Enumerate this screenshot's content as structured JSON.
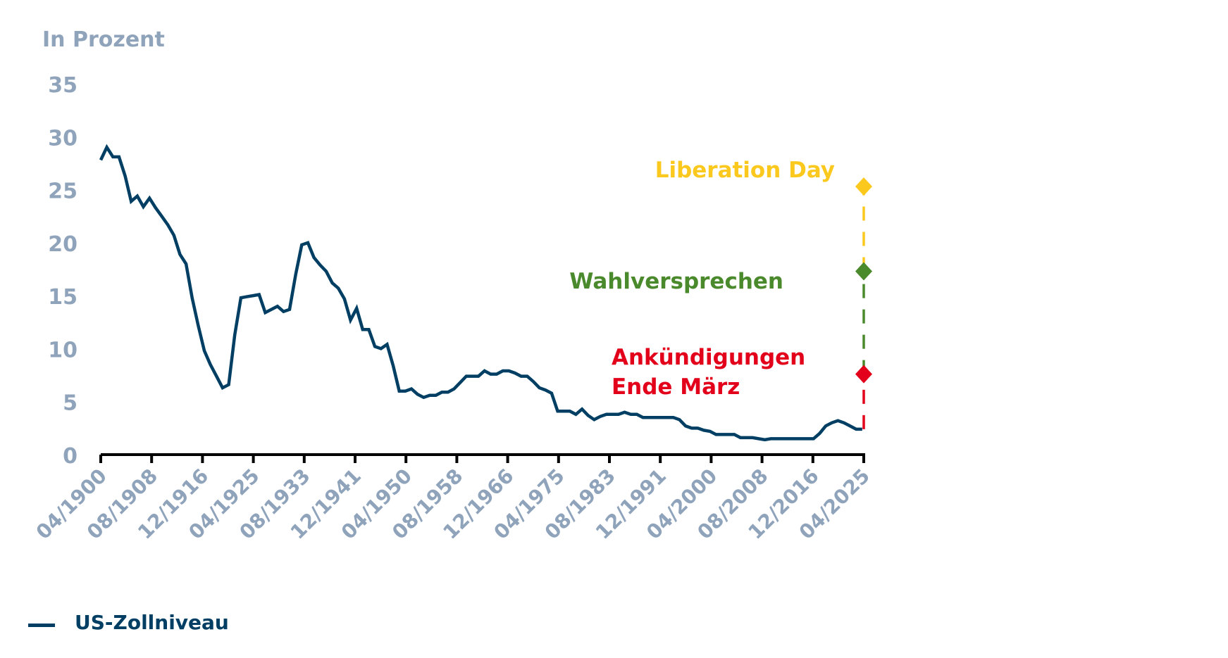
{
  "chart_data": {
    "type": "line",
    "title": "",
    "ylabel": "In Prozent",
    "xlabel": "",
    "ylim": [
      0,
      35
    ],
    "yticks": [
      0,
      5,
      10,
      15,
      20,
      25,
      30,
      35
    ],
    "xticks": [
      "04/1900",
      "08/1908",
      "12/1916",
      "04/1925",
      "08/1933",
      "12/1941",
      "04/1950",
      "08/1958",
      "12/1966",
      "04/1975",
      "08/1983",
      "12/1991",
      "04/2000",
      "08/2008",
      "12/2016",
      "04/2025"
    ],
    "grid": false,
    "legend_position": "bottom-left",
    "series": [
      {
        "name": "US-Zollniveau",
        "color": "#003f63",
        "x": [
          1900,
          1901,
          1902,
          1903,
          1904,
          1905,
          1906,
          1907,
          1908,
          1909,
          1910,
          1911,
          1912,
          1913,
          1914,
          1915,
          1916,
          1917,
          1918,
          1919,
          1920,
          1921,
          1922,
          1923,
          1924,
          1925,
          1926,
          1927,
          1928,
          1929,
          1930,
          1931,
          1932,
          1933,
          1934,
          1935,
          1936,
          1937,
          1938,
          1939,
          1940,
          1941,
          1942,
          1943,
          1944,
          1945,
          1946,
          1947,
          1948,
          1949,
          1950,
          1951,
          1952,
          1953,
          1954,
          1955,
          1956,
          1957,
          1958,
          1959,
          1960,
          1961,
          1962,
          1963,
          1964,
          1965,
          1966,
          1967,
          1968,
          1969,
          1970,
          1971,
          1972,
          1973,
          1974,
          1975,
          1976,
          1977,
          1978,
          1979,
          1980,
          1981,
          1982,
          1983,
          1984,
          1985,
          1986,
          1987,
          1988,
          1989,
          1990,
          1991,
          1992,
          1993,
          1994,
          1995,
          1996,
          1997,
          1998,
          1999,
          2000,
          2001,
          2002,
          2003,
          2004,
          2005,
          2006,
          2007,
          2008,
          2009,
          2010,
          2011,
          2012,
          2013,
          2014,
          2015,
          2016,
          2017,
          2018,
          2019,
          2020,
          2021,
          2022,
          2023,
          2024,
          2025
        ],
        "values": [
          27.8,
          29.0,
          28.1,
          28.1,
          26.3,
          23.9,
          24.4,
          23.4,
          24.2,
          23.3,
          22.5,
          21.7,
          20.7,
          18.9,
          18.0,
          14.8,
          12.2,
          9.8,
          8.5,
          7.4,
          6.3,
          6.6,
          11.3,
          14.8,
          14.9,
          15.0,
          15.1,
          13.4,
          13.7,
          14.0,
          13.5,
          13.7,
          17.0,
          19.8,
          20.0,
          18.6,
          17.9,
          17.3,
          16.2,
          15.7,
          14.7,
          12.7,
          13.8,
          11.8,
          11.8,
          10.2,
          10.0,
          10.4,
          8.4,
          6.0,
          6.0,
          6.2,
          5.7,
          5.4,
          5.6,
          5.6,
          5.9,
          5.9,
          6.2,
          6.8,
          7.4,
          7.4,
          7.4,
          7.9,
          7.6,
          7.6,
          7.9,
          7.9,
          7.7,
          7.4,
          7.4,
          6.9,
          6.3,
          6.1,
          5.8,
          4.1,
          4.1,
          4.1,
          3.8,
          4.3,
          3.7,
          3.3,
          3.6,
          3.8,
          3.8,
          3.8,
          4.0,
          3.8,
          3.8,
          3.5,
          3.5,
          3.5,
          3.5,
          3.5,
          3.5,
          3.3,
          2.7,
          2.5,
          2.5,
          2.3,
          2.2,
          1.9,
          1.9,
          1.9,
          1.9,
          1.6,
          1.6,
          1.6,
          1.5,
          1.4,
          1.5,
          1.5,
          1.5,
          1.5,
          1.5,
          1.5,
          1.5,
          1.5,
          2.0,
          2.7,
          3.0,
          3.2,
          3.0,
          2.7,
          2.4,
          2.4
        ]
      }
    ],
    "annotations": [
      {
        "label": "Liberation Day",
        "value": 25.3,
        "color": "#fbc91e",
        "x": 2025
      },
      {
        "label": "Wahlversprechen",
        "value": 17.3,
        "color": "#4a8a2c",
        "x": 2025
      },
      {
        "label": "Ankündigungen Ende März",
        "lines": [
          "Ankündigungen",
          "Ende März"
        ],
        "value": 7.6,
        "color": "#e2001a",
        "x": 2025
      }
    ]
  },
  "legend": {
    "items": [
      {
        "label": "US-Zollniveau",
        "color": "#003f63"
      }
    ]
  }
}
